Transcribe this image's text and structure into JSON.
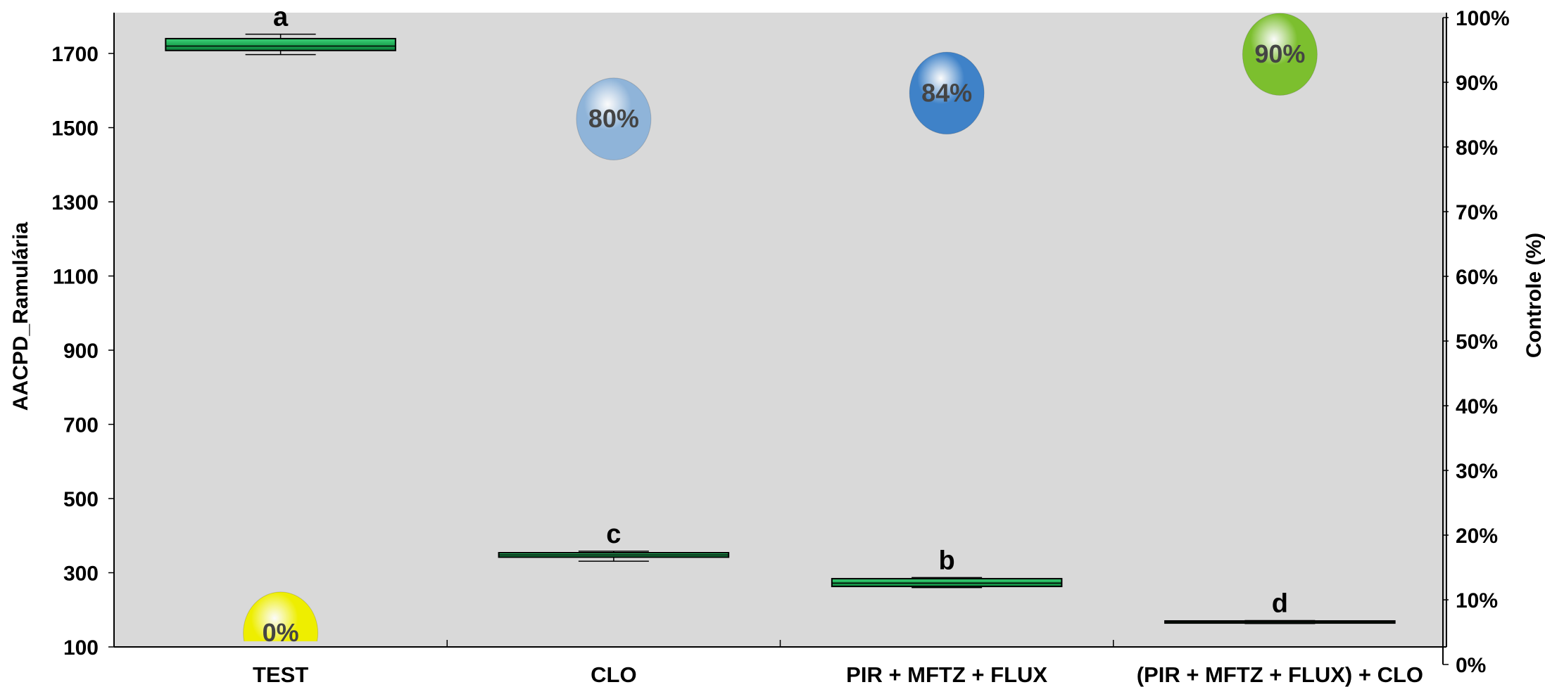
{
  "chart_data": {
    "type": "box",
    "categories": [
      "TEST",
      "CLO",
      "PIR + MFTZ + FLUX",
      "(PIR + MFTZ + FLUX) + CLO"
    ],
    "ylabel": "AACPD_Ramulária",
    "y2label": "Controle (%)",
    "ylim": [
      100,
      1810
    ],
    "y2lim": [
      0,
      100
    ],
    "yticks": [
      100,
      300,
      500,
      700,
      900,
      1100,
      1300,
      1500,
      1700
    ],
    "y2ticks": [
      0,
      10,
      20,
      30,
      40,
      50,
      60,
      70,
      80,
      90,
      100
    ],
    "boxes": [
      {
        "category": "TEST",
        "whisker_low": 1697,
        "q1": 1708,
        "median": 1720,
        "q3": 1740,
        "whisker_high": 1752,
        "letter": "a"
      },
      {
        "category": "CLO",
        "whisker_low": 331,
        "q1": 342,
        "median": 348,
        "q3": 354,
        "whisker_high": 358,
        "letter": "c"
      },
      {
        "category": "PIR + MFTZ + FLUX",
        "whisker_low": 260,
        "q1": 263,
        "median": 272,
        "q3": 284,
        "whisker_high": 287,
        "letter": "b"
      },
      {
        "category": "(PIR + MFTZ + FLUX) + CLO",
        "whisker_low": 163,
        "q1": 166,
        "median": 168,
        "q3": 170,
        "whisker_high": 171,
        "letter": "d"
      }
    ],
    "control_percent": [
      {
        "category": "TEST",
        "value": 0,
        "label": "0%",
        "color": "#eeee00"
      },
      {
        "category": "CLO",
        "value": 80,
        "label": "80%",
        "color": "#8fb4d9"
      },
      {
        "category": "PIR + MFTZ + FLUX",
        "value": 84,
        "label": "84%",
        "color": "#3f82c8"
      },
      {
        "category": "(PIR + MFTZ + FLUX) + CLO",
        "value": 90,
        "label": "90%",
        "color": "#7cbf2e"
      }
    ],
    "colors": {
      "box_fill": "#1faa55",
      "plot_bg": "#d9d9d9"
    },
    "grid": false,
    "legend": "none"
  }
}
